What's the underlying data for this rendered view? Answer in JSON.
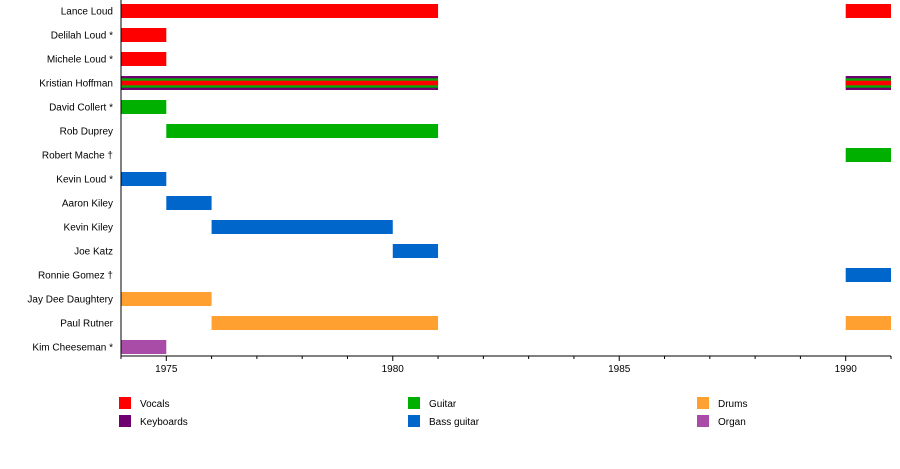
{
  "chart_data": {
    "type": "timeline",
    "xlim": [
      1974,
      1991
    ],
    "xticks": [
      1975,
      1980,
      1985,
      1990
    ],
    "tick_labels": [
      "1975",
      "1980",
      "1985",
      "1990"
    ],
    "minor_ticks": "yearly",
    "roles": [
      {
        "name": "Vocals",
        "color": "#FF0000"
      },
      {
        "name": "Keyboards",
        "color": "#6E0070"
      },
      {
        "name": "Guitar",
        "color": "#00B000"
      },
      {
        "name": "Bass guitar",
        "color": "#0066CC"
      },
      {
        "name": "Drums",
        "color": "#FFA030"
      },
      {
        "name": "Organ",
        "color": "#A84CA8"
      }
    ],
    "members": [
      {
        "name": "Lance Loud",
        "periods": [
          {
            "from": 1974,
            "to": 1981,
            "roles": [
              "Vocals"
            ]
          },
          {
            "from": 1990,
            "to": 1991,
            "roles": [
              "Vocals"
            ]
          }
        ]
      },
      {
        "name": "Delilah Loud *",
        "periods": [
          {
            "from": 1974,
            "to": 1975,
            "roles": [
              "Vocals"
            ]
          }
        ]
      },
      {
        "name": "Michele Loud *",
        "periods": [
          {
            "from": 1974,
            "to": 1975,
            "roles": [
              "Vocals"
            ]
          }
        ]
      },
      {
        "name": "Kristian Hoffman",
        "periods": [
          {
            "from": 1974,
            "to": 1981,
            "roles": [
              "Keyboards",
              "Guitar",
              "Vocals"
            ]
          },
          {
            "from": 1990,
            "to": 1991,
            "roles": [
              "Keyboards",
              "Guitar",
              "Vocals"
            ]
          }
        ]
      },
      {
        "name": "David Collert *",
        "periods": [
          {
            "from": 1974,
            "to": 1975,
            "roles": [
              "Guitar"
            ]
          }
        ]
      },
      {
        "name": "Rob Duprey",
        "periods": [
          {
            "from": 1975,
            "to": 1981,
            "roles": [
              "Guitar"
            ]
          }
        ]
      },
      {
        "name": "Robert Mache †",
        "periods": [
          {
            "from": 1990,
            "to": 1991,
            "roles": [
              "Guitar"
            ]
          }
        ]
      },
      {
        "name": "Kevin Loud *",
        "periods": [
          {
            "from": 1974,
            "to": 1975,
            "roles": [
              "Bass guitar"
            ]
          }
        ]
      },
      {
        "name": "Aaron Kiley",
        "periods": [
          {
            "from": 1975,
            "to": 1976,
            "roles": [
              "Bass guitar"
            ]
          }
        ]
      },
      {
        "name": "Kevin Kiley",
        "periods": [
          {
            "from": 1976,
            "to": 1980,
            "roles": [
              "Bass guitar"
            ]
          }
        ]
      },
      {
        "name": "Joe Katz",
        "periods": [
          {
            "from": 1980,
            "to": 1981,
            "roles": [
              "Bass guitar"
            ]
          }
        ]
      },
      {
        "name": "Ronnie Gomez †",
        "periods": [
          {
            "from": 1990,
            "to": 1991,
            "roles": [
              "Bass guitar"
            ]
          }
        ]
      },
      {
        "name": "Jay Dee Daughtery",
        "periods": [
          {
            "from": 1974,
            "to": 1976,
            "roles": [
              "Drums"
            ]
          }
        ]
      },
      {
        "name": "Paul Rutner",
        "periods": [
          {
            "from": 1976,
            "to": 1981,
            "roles": [
              "Drums"
            ]
          },
          {
            "from": 1990,
            "to": 1991,
            "roles": [
              "Drums"
            ]
          }
        ]
      },
      {
        "name": "Kim Cheeseman *",
        "periods": [
          {
            "from": 1974,
            "to": 1975,
            "roles": [
              "Organ"
            ]
          }
        ]
      }
    ],
    "legend_placement": "bottom"
  }
}
